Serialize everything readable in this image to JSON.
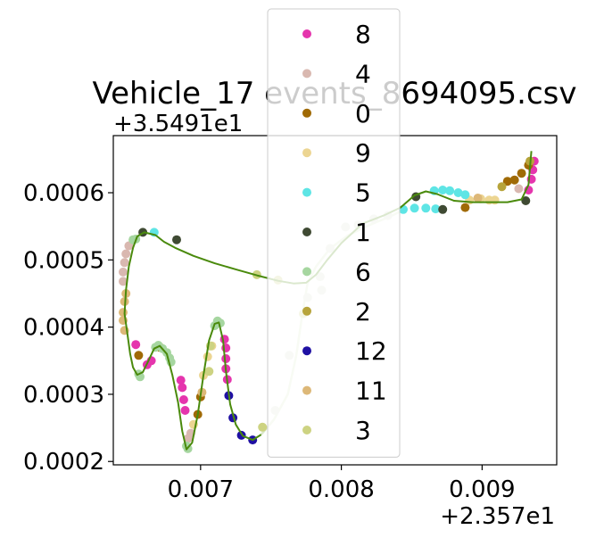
{
  "chart_data": {
    "type": "scatter",
    "title": "Vehicle_17 events_8694095.csv",
    "x_offset_label": "+2.357e1",
    "y_offset_label": "+3.5491e1",
    "xlabel": "",
    "ylabel": "",
    "xlim": [
      0.00638,
      0.00953
    ],
    "ylim": [
      0.000195,
      0.000685
    ],
    "x_ticks": [
      0.007,
      0.008,
      0.009
    ],
    "x_tick_labels": [
      "0.007",
      "0.008",
      "0.009"
    ],
    "y_ticks": [
      0.0002,
      0.0003,
      0.0004,
      0.0005,
      0.0006
    ],
    "y_tick_labels": [
      "0.0002",
      "0.0003",
      "0.0004",
      "0.0005",
      "0.0006"
    ],
    "grid": false,
    "legend_position": "upper-center",
    "legend": [
      {
        "name": "8",
        "color": "#e535ad"
      },
      {
        "name": "4",
        "color": "#d9b8b0"
      },
      {
        "name": "0",
        "color": "#a06a05"
      },
      {
        "name": "9",
        "color": "#ecd592"
      },
      {
        "name": "5",
        "color": "#5ee5e5"
      },
      {
        "name": "1",
        "color": "#3f4a33"
      },
      {
        "name": "6",
        "color": "#a6d6a0"
      },
      {
        "name": "2",
        "color": "#b7a43b"
      },
      {
        "name": "12",
        "color": "#1f10a3"
      },
      {
        "name": "11",
        "color": "#ddb878"
      },
      {
        "name": "3",
        "color": "#cdd382"
      }
    ],
    "trajectory_line_color": "#4a8a0c",
    "faded_line_color": "#dbe8c9",
    "trajectory": [
      [
        0.00935,
        0.000662
      ],
      [
        0.00933,
        0.000612
      ],
      [
        0.00928,
        0.00059
      ],
      [
        0.00918,
        0.000586
      ],
      [
        0.00905,
        0.000586
      ],
      [
        0.00893,
        0.000586
      ],
      [
        0.0088,
        0.000588
      ],
      [
        0.00868,
        0.000598
      ],
      [
        0.0086,
        0.000602
      ],
      [
        0.00852,
        0.000596
      ],
      [
        0.00842,
        0.000578
      ],
      [
        0.0083,
        0.000566
      ],
      [
        0.00815,
        0.000554
      ],
      [
        0.008,
        0.000525
      ],
      [
        0.0079,
        0.0005
      ],
      [
        0.00782,
        0.000478
      ],
      [
        0.00775,
        0.000466
      ],
      [
        0.00766,
        0.000465
      ],
      [
        0.00755,
        0.000469
      ],
      [
        0.0074,
        0.000477
      ],
      [
        0.00725,
        0.000486
      ],
      [
        0.0071,
        0.000495
      ],
      [
        0.00695,
        0.000506
      ],
      [
        0.00682,
        0.000518
      ],
      [
        0.00674,
        0.000527
      ],
      [
        0.00668,
        0.000537
      ],
      [
        0.0066,
        0.000541
      ],
      [
        0.00655,
        0.000535
      ],
      [
        0.00652,
        0.000518
      ],
      [
        0.00649,
        0.00049
      ],
      [
        0.00647,
        0.000455
      ],
      [
        0.00646,
        0.00042
      ],
      [
        0.00648,
        0.00039
      ],
      [
        0.0065,
        0.00036
      ],
      [
        0.00652,
        0.00034
      ],
      [
        0.00655,
        0.000329
      ],
      [
        0.00659,
        0.000333
      ],
      [
        0.00663,
        0.00035
      ],
      [
        0.00667,
        0.000368
      ],
      [
        0.00671,
        0.000372
      ],
      [
        0.00676,
        0.00036
      ],
      [
        0.0068,
        0.000328
      ],
      [
        0.00684,
        0.000288
      ],
      [
        0.00687,
        0.000245
      ],
      [
        0.0069,
        0.000218
      ],
      [
        0.00694,
        0.000228
      ],
      [
        0.00698,
        0.00027
      ],
      [
        0.00702,
        0.000328
      ],
      [
        0.00706,
        0.00038
      ],
      [
        0.0071,
        0.000405
      ],
      [
        0.00713,
        0.000407
      ],
      [
        0.00716,
        0.00038
      ],
      [
        0.00718,
        0.000335
      ],
      [
        0.00721,
        0.000285
      ],
      [
        0.00725,
        0.000255
      ],
      [
        0.0073,
        0.000238
      ],
      [
        0.00737,
        0.000232
      ],
      [
        0.00743,
        0.00024
      ]
    ],
    "faded_trajectory": [
      [
        0.00743,
        0.00024
      ],
      [
        0.00752,
        0.000262
      ],
      [
        0.00762,
        0.0003
      ],
      [
        0.00768,
        0.000358
      ],
      [
        0.00772,
        0.000415
      ],
      [
        0.00776,
        0.000465
      ],
      [
        0.00782,
        0.00049
      ],
      [
        0.00792,
        0.000517
      ],
      [
        0.00805,
        0.000537
      ],
      [
        0.0082,
        0.000552
      ],
      [
        0.00835,
        0.000565
      ],
      [
        0.00845,
        0.000575
      ]
    ],
    "series": [
      {
        "name": "8",
        "color": "#e535ad",
        "points": [
          [
            0.00654,
            0.000374
          ],
          [
            0.00662,
            0.000344
          ],
          [
            0.00665,
            0.00035
          ],
          [
            0.00686,
            0.000321
          ],
          [
            0.00687,
            0.00031
          ],
          [
            0.00688,
            0.000292
          ],
          [
            0.00689,
            0.000276
          ],
          [
            0.00717,
            0.000382
          ],
          [
            0.00718,
            0.000369
          ],
          [
            0.00718,
            0.000353
          ],
          [
            0.00718,
            0.000338
          ],
          [
            0.00719,
            0.000322
          ],
          [
            0.00933,
            0.000604
          ],
          [
            0.00935,
            0.00062
          ],
          [
            0.00936,
            0.000634
          ],
          [
            0.00937,
            0.000647
          ]
        ]
      },
      {
        "name": "4",
        "color": "#d9b8b0",
        "points": [
          [
            0.00646,
            0.000496
          ],
          [
            0.00647,
            0.000509
          ],
          [
            0.00649,
            0.000521
          ],
          [
            0.00645,
            0.000482
          ],
          [
            0.00645,
            0.000468
          ],
          [
            0.00691,
            0.000234
          ],
          [
            0.00693,
            0.000242
          ],
          [
            0.00926,
            0.000606
          ]
        ]
      },
      {
        "name": "0",
        "color": "#a06a05",
        "points": [
          [
            0.00656,
            0.000358
          ],
          [
            0.00671,
            0.00037
          ],
          [
            0.00698,
            0.00027
          ],
          [
            0.007,
            0.000296
          ],
          [
            0.00888,
            0.000578
          ],
          [
            0.00918,
            0.000617
          ],
          [
            0.00923,
            0.000619
          ],
          [
            0.00928,
            0.000629
          ],
          [
            0.00933,
            0.000641
          ]
        ]
      },
      {
        "name": "9",
        "color": "#ecd592",
        "points": [
          [
            0.00695,
            0.000255
          ],
          [
            0.00702,
            0.000328
          ],
          [
            0.00705,
            0.000356
          ],
          [
            0.00708,
            0.000372
          ],
          [
            0.00891,
            0.000589
          ],
          [
            0.00899,
            0.000591
          ],
          [
            0.00905,
            0.000589
          ],
          [
            0.00909,
            0.000589
          ]
        ]
      },
      {
        "name": "5",
        "color": "#5ee5e5",
        "points": [
          [
            0.00667,
            0.000541
          ],
          [
            0.0086,
            0.000577
          ],
          [
            0.00866,
            0.000603
          ],
          [
            0.00872,
            0.000604
          ],
          [
            0.00877,
            0.000603
          ],
          [
            0.00883,
            0.0006
          ],
          [
            0.00888,
            0.000597
          ],
          [
            0.00844,
            0.000575
          ],
          [
            0.00852,
            0.000577
          ],
          [
            0.00867,
            0.000576
          ]
        ]
      },
      {
        "name": "1",
        "color": "#3f4a33",
        "points": [
          [
            0.00659,
            0.000541
          ],
          [
            0.00683,
            0.00053
          ],
          [
            0.00853,
            0.000594
          ],
          [
            0.00872,
            0.000575
          ],
          [
            0.00931,
            0.000588
          ]
        ]
      },
      {
        "name": "6",
        "color": "#a6d6a0",
        "points": [
          [
            0.00652,
            0.00053
          ],
          [
            0.00654,
            0.000531
          ],
          [
            0.00656,
            0.00033
          ],
          [
            0.00657,
            0.000326
          ],
          [
            0.00668,
            0.00037
          ],
          [
            0.0067,
            0.000373
          ],
          [
            0.00673,
            0.000368
          ],
          [
            0.00676,
            0.000362
          ],
          [
            0.00678,
            0.000354
          ],
          [
            0.00679,
            0.000348
          ],
          [
            0.0069,
            0.000223
          ],
          [
            0.00691,
            0.000219
          ],
          [
            0.0071,
            0.000402
          ],
          [
            0.00712,
            0.000409
          ],
          [
            0.00714,
            0.000406
          ]
        ]
      },
      {
        "name": "2",
        "color": "#b7a43b",
        "points": [
          [
            0.00914,
            0.000609
          ],
          [
            0.00934,
            0.000647
          ]
        ]
      },
      {
        "name": "12",
        "color": "#1f10a3",
        "points": [
          [
            0.0072,
            0.000298
          ],
          [
            0.00723,
            0.000265
          ],
          [
            0.00729,
            0.000239
          ],
          [
            0.00737,
            0.000232
          ]
        ]
      },
      {
        "name": "11",
        "color": "#ddb878",
        "points": [
          [
            0.00647,
            0.00045
          ],
          [
            0.00646,
            0.000438
          ],
          [
            0.00645,
            0.000422
          ],
          [
            0.00645,
            0.00041
          ],
          [
            0.00646,
            0.000395
          ],
          [
            0.00701,
            0.000303
          ],
          [
            0.00897,
            0.000592
          ]
        ]
      },
      {
        "name": "3",
        "color": "#cdd382",
        "points": [
          [
            0.00707,
            0.000372
          ],
          [
            0.0074,
            0.000478
          ],
          [
            0.00755,
            0.00047
          ],
          [
            0.00773,
            0.00042
          ],
          [
            0.00706,
            0.000334
          ],
          [
            0.00744,
            0.000251
          ]
        ]
      },
      {
        "name": "faded",
        "color": "#d9e2cf",
        "points": [
          [
            0.00753,
            0.000276
          ],
          [
            0.00763,
            0.000358
          ],
          [
            0.00776,
            0.000444
          ],
          [
            0.00785,
            0.000475
          ],
          [
            0.00792,
            0.000517
          ],
          [
            0.00803,
            0.000549
          ],
          [
            0.00812,
            0.000552
          ],
          [
            0.00823,
            0.000561
          ],
          [
            0.00833,
            0.000566
          ],
          [
            0.00786,
            0.000455
          ]
        ]
      }
    ]
  }
}
